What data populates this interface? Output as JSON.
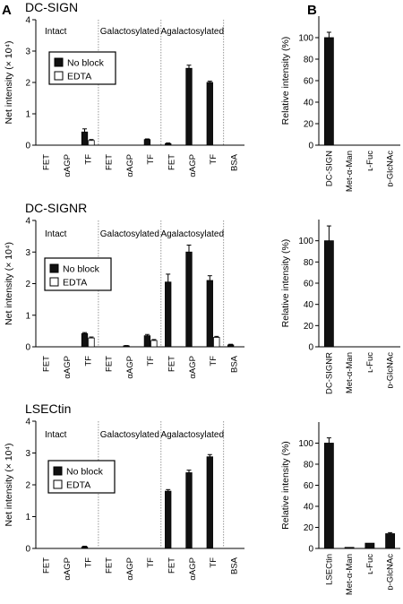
{
  "figure": {
    "panel_a_label": "A",
    "panel_b_label": "B"
  },
  "colors": {
    "bar_fill": "#111111",
    "edta_fill": "#ffffff",
    "axis": "#000000",
    "divider": "#7f7f7f"
  },
  "chart_data": [
    {
      "id": "A1",
      "type": "bar",
      "title": "DC-SIGN",
      "ylabel": "Net intensity (× 10⁴)",
      "ylim": [
        0,
        4
      ],
      "yticks": [
        0,
        1,
        2,
        3,
        4
      ],
      "sections": [
        "Intact",
        "Galactosylated",
        "Agalactosylated"
      ],
      "categories": [
        "FET",
        "αAGP",
        "TF",
        "FET",
        "αAGP",
        "TF",
        "FET",
        "αAGP",
        "TF",
        "BSA"
      ],
      "legend": [
        "No block",
        "EDTA"
      ],
      "series": [
        {
          "name": "No block",
          "values": [
            0,
            0,
            0.42,
            0,
            0,
            0.18,
            0.05,
            2.45,
            2.0,
            0
          ],
          "errors": [
            0,
            0,
            0.1,
            0,
            0,
            0.02,
            0.02,
            0.1,
            0.04,
            0
          ]
        },
        {
          "name": "EDTA",
          "values": [
            0,
            0,
            0.15,
            0,
            0,
            0,
            0,
            0,
            0,
            0
          ],
          "errors": [
            0,
            0,
            0.03,
            0,
            0,
            0,
            0,
            0,
            0,
            0
          ]
        }
      ]
    },
    {
      "id": "A2",
      "type": "bar",
      "title": "DC-SIGNR",
      "ylabel": "Net intensity (× 10⁴)",
      "ylim": [
        0,
        4
      ],
      "yticks": [
        0,
        1,
        2,
        3,
        4
      ],
      "sections": [
        "Intact",
        "Galactosylated",
        "Agalactosylated"
      ],
      "categories": [
        "FET",
        "αAGP",
        "TF",
        "FET",
        "αAGP",
        "TF",
        "FET",
        "αAGP",
        "TF",
        "BSA"
      ],
      "legend": [
        "No block",
        "EDTA"
      ],
      "series": [
        {
          "name": "No block",
          "values": [
            0,
            0,
            0.42,
            0,
            0.03,
            0.35,
            2.05,
            3.0,
            2.1,
            0.06
          ],
          "errors": [
            0,
            0,
            0.03,
            0,
            0.01,
            0.04,
            0.25,
            0.22,
            0.15,
            0.02
          ]
        },
        {
          "name": "EDTA",
          "values": [
            0,
            0,
            0.28,
            0,
            0,
            0.2,
            0,
            0,
            0.3,
            0
          ],
          "errors": [
            0,
            0,
            0.03,
            0,
            0,
            0.03,
            0,
            0,
            0.03,
            0
          ]
        }
      ]
    },
    {
      "id": "A3",
      "type": "bar",
      "title": "LSECtin",
      "ylabel": "Net intensity (× 10⁴)",
      "ylim": [
        0,
        4
      ],
      "yticks": [
        0,
        1,
        2,
        3,
        4
      ],
      "sections": [
        "Intact",
        "Galactosylated",
        "Agalactosylated"
      ],
      "categories": [
        "FET",
        "αAGP",
        "TF",
        "FET",
        "αAGP",
        "TF",
        "FET",
        "αAGP",
        "TF",
        "BSA"
      ],
      "legend": [
        "No block",
        "EDTA"
      ],
      "series": [
        {
          "name": "No block",
          "values": [
            0,
            0,
            0.05,
            0,
            0,
            0,
            1.8,
            2.38,
            2.88,
            0
          ],
          "errors": [
            0,
            0,
            0.02,
            0,
            0,
            0,
            0.05,
            0.08,
            0.07,
            0
          ]
        },
        {
          "name": "EDTA",
          "values": [
            0,
            0,
            0,
            0,
            0,
            0,
            0,
            0,
            0,
            0
          ],
          "errors": [
            0,
            0,
            0,
            0,
            0,
            0,
            0,
            0,
            0,
            0
          ]
        }
      ]
    },
    {
      "id": "B1",
      "type": "bar",
      "ylabel": "Relative intensity (%)",
      "ylim": [
        0,
        120
      ],
      "yticks": [
        0,
        20,
        40,
        60,
        80,
        100
      ],
      "categories": [
        "DC-SIGN",
        "Met-α-Man",
        "ʟ-Fuc",
        "ᴅ-GlcNAc"
      ],
      "values": [
        100,
        0,
        0,
        0
      ],
      "errors": [
        5,
        0,
        0,
        0
      ]
    },
    {
      "id": "B2",
      "type": "bar",
      "ylabel": "Relative intensity (%)",
      "ylim": [
        0,
        120
      ],
      "yticks": [
        0,
        20,
        40,
        60,
        80,
        100
      ],
      "categories": [
        "DC-SIGNR",
        "Met-α-Man",
        "ʟ-Fuc",
        "ᴅ-GlcNAc"
      ],
      "values": [
        100,
        0,
        0,
        0
      ],
      "errors": [
        14,
        0,
        0,
        0
      ]
    },
    {
      "id": "B3",
      "type": "bar",
      "ylabel": "Relative intensity (%)",
      "ylim": [
        0,
        120
      ],
      "yticks": [
        0,
        20,
        40,
        60,
        80,
        100
      ],
      "categories": [
        "LSECtin",
        "Met-α-Man",
        "ʟ-Fuc",
        "ᴅ-GlcNAc"
      ],
      "values": [
        100,
        1,
        5,
        14
      ],
      "errors": [
        5,
        0,
        0,
        1
      ]
    }
  ]
}
